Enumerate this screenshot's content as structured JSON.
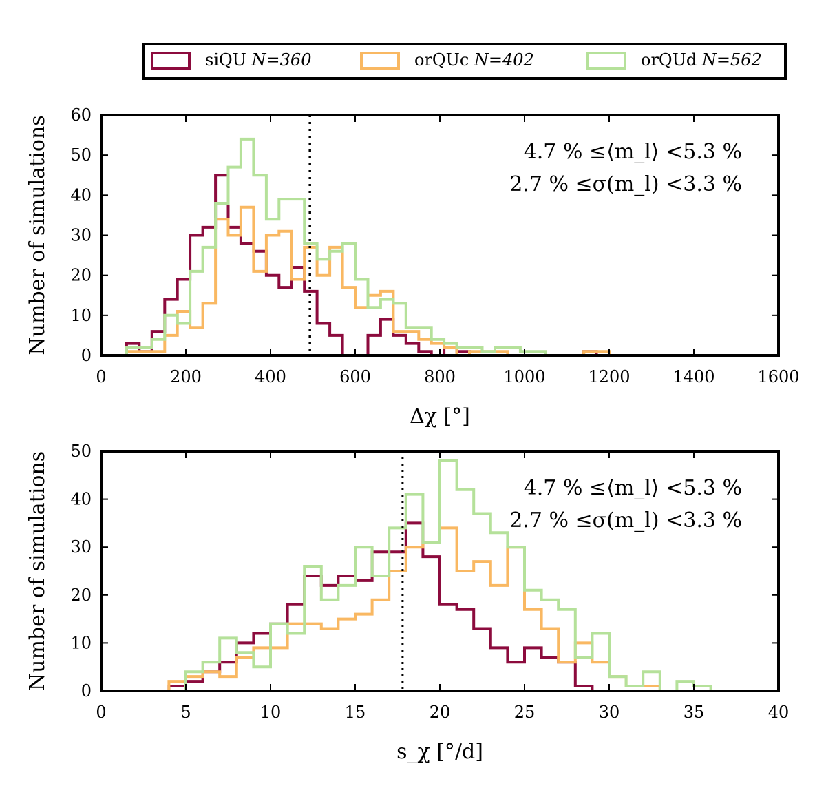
{
  "legend": [
    {
      "name": "siQU",
      "n_label": "N=360",
      "color": "#8c0b3d"
    },
    {
      "name": "orQUc",
      "n_label": "N=402",
      "color": "#f9b862"
    },
    {
      "name": "orQUd",
      "n_label": "N=562",
      "color": "#b5e19a"
    }
  ],
  "chart_data": [
    {
      "type": "histogram",
      "xlabel": "Δχ [°]",
      "ylabel": "Number of simulations",
      "xlim": [
        0,
        1600
      ],
      "ylim": [
        0,
        60
      ],
      "xticks": [
        0,
        200,
        400,
        600,
        800,
        1000,
        1200,
        1400,
        1600
      ],
      "yticks": [
        0,
        10,
        20,
        30,
        40,
        50,
        60
      ],
      "vline": 493,
      "annotations": [
        "4.7 % ≤⟨m_l⟩ <5.3 %",
        "2.7 % ≤σ(m_l) <3.3 %"
      ],
      "series": [
        {
          "name": "siQU",
          "color": "#8c0b3d",
          "start": 60,
          "bin_width": 30,
          "values": [
            3,
            1,
            6,
            14,
            19,
            30,
            32,
            45,
            32,
            28,
            26,
            20,
            17,
            22,
            16,
            8,
            5,
            0,
            0,
            5,
            9,
            5,
            3,
            1,
            0,
            2,
            1,
            0,
            0,
            0,
            0,
            0,
            0,
            0,
            0,
            0,
            1,
            0
          ]
        },
        {
          "name": "orQUc",
          "color": "#f9b862",
          "start": 60,
          "bin_width": 30,
          "values": [
            1,
            1,
            1,
            5,
            11,
            7,
            13,
            34,
            30,
            37,
            21,
            30,
            31,
            19,
            27,
            20,
            27,
            17,
            12,
            15,
            16,
            6,
            6,
            4,
            3,
            2,
            0,
            1,
            1,
            1,
            0,
            0,
            0,
            0,
            0,
            0,
            1,
            1
          ]
        },
        {
          "name": "orQUd",
          "color": "#b5e19a",
          "start": 60,
          "bin_width": 30,
          "values": [
            2,
            2,
            4,
            10,
            8,
            21,
            27,
            38,
            47,
            54,
            45,
            34,
            39,
            39,
            28,
            24,
            26,
            28,
            19,
            12,
            14,
            13,
            7,
            7,
            4,
            3,
            2,
            2,
            1,
            2,
            2,
            1,
            1,
            0,
            0,
            0,
            0,
            0
          ]
        }
      ]
    },
    {
      "type": "histogram",
      "xlabel": "s_χ [°/d]",
      "ylabel": "Number of simulations",
      "xlim": [
        0,
        40
      ],
      "ylim": [
        0,
        50
      ],
      "xticks": [
        0,
        5,
        10,
        15,
        20,
        25,
        30,
        35,
        40
      ],
      "yticks": [
        0,
        10,
        20,
        30,
        40,
        50
      ],
      "vline": 17.8,
      "annotations": [
        "4.7 % ≤⟨m_l⟩ <5.3 %",
        "2.7 % ≤σ(m_l) <3.3 %"
      ],
      "series": [
        {
          "name": "siQU",
          "color": "#8c0b3d",
          "start": 4,
          "bin_width": 1,
          "values": [
            1,
            2,
            4,
            6,
            10,
            12,
            14,
            18,
            24,
            22,
            24,
            23,
            29,
            29,
            35,
            28,
            18,
            17,
            13,
            9,
            6,
            9,
            7,
            6,
            1,
            0,
            0,
            0,
            0,
            0,
            0,
            0
          ]
        },
        {
          "name": "orQUc",
          "color": "#f9b862",
          "start": 4,
          "bin_width": 1,
          "values": [
            2,
            3,
            4,
            3,
            7,
            9,
            9,
            14,
            14,
            13,
            15,
            16,
            19,
            25,
            30,
            31,
            34,
            25,
            27,
            22,
            30,
            17,
            13,
            6,
            10,
            6,
            3,
            1,
            1,
            0,
            0,
            0
          ]
        },
        {
          "name": "orQUd",
          "color": "#b5e19a",
          "start": 4,
          "bin_width": 1,
          "values": [
            0,
            4,
            6,
            11,
            8,
            5,
            14,
            12,
            26,
            19,
            22,
            30,
            24,
            34,
            41,
            31,
            48,
            42,
            37,
            33,
            30,
            21,
            19,
            17,
            7,
            12,
            3,
            1,
            4,
            0,
            2,
            1
          ]
        }
      ]
    }
  ]
}
